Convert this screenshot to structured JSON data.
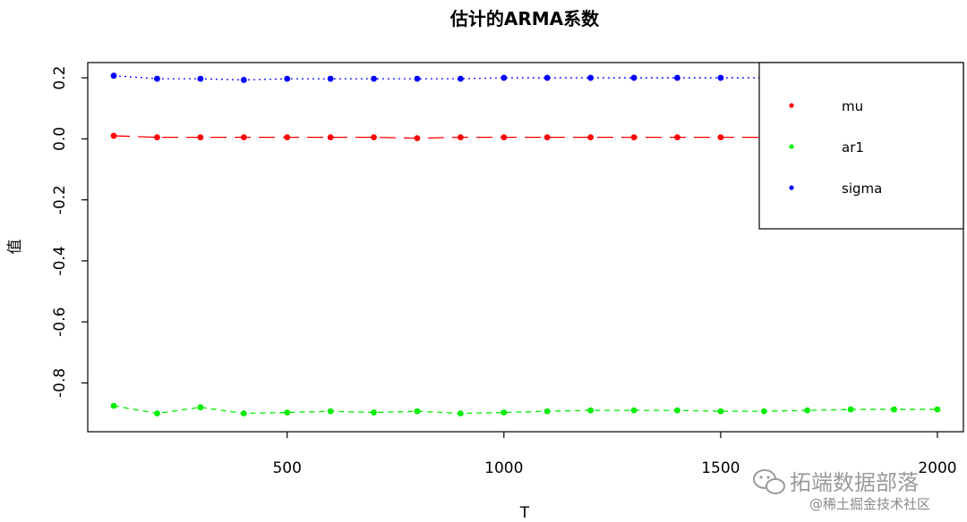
{
  "chart_data": {
    "type": "line",
    "title": "估计的ARMA系数",
    "xlabel": "T",
    "ylabel": "值",
    "xlim": [
      40,
      2060
    ],
    "ylim": [
      -0.96,
      0.25
    ],
    "xticks": [
      500,
      1000,
      1500,
      2000
    ],
    "yticks": [
      -0.8,
      -0.6,
      -0.4,
      -0.2,
      0.0,
      0.2
    ],
    "ytick_labels": [
      "-0.8",
      "-0.6",
      "-0.4",
      "-0.2",
      "0.0",
      "0.2"
    ],
    "xtick_labels": [
      "500",
      "1000",
      "1500",
      "2000"
    ],
    "grid": false,
    "legend_position": "top-right",
    "x": [
      100,
      200,
      300,
      400,
      500,
      600,
      700,
      800,
      900,
      1000,
      1100,
      1200,
      1300,
      1400,
      1500,
      1600,
      1700,
      1800,
      1900,
      2000
    ],
    "series": [
      {
        "name": "mu",
        "color": "#ff0000",
        "dash": "long-dash",
        "values": [
          0.01,
          0.005,
          0.005,
          0.005,
          0.005,
          0.005,
          0.005,
          0.002,
          0.005,
          0.005,
          0.005,
          0.005,
          0.005,
          0.005,
          0.005,
          0.005,
          0.005,
          0.005,
          0.005,
          0.005
        ]
      },
      {
        "name": "ar1",
        "color": "#00ee00",
        "dash": "dash",
        "values": [
          -0.875,
          -0.9,
          -0.88,
          -0.9,
          -0.897,
          -0.893,
          -0.897,
          -0.893,
          -0.9,
          -0.897,
          -0.893,
          -0.89,
          -0.89,
          -0.89,
          -0.893,
          -0.893,
          -0.89,
          -0.887,
          -0.887,
          -0.887
        ]
      },
      {
        "name": "sigma",
        "color": "#0000ff",
        "dash": "dotted",
        "values": [
          0.207,
          0.197,
          0.197,
          0.193,
          0.197,
          0.197,
          0.197,
          0.197,
          0.197,
          0.2,
          0.2,
          0.2,
          0.2,
          0.2,
          0.2,
          0.2,
          0.2,
          0.2,
          0.2,
          0.2
        ]
      }
    ]
  },
  "watermark": {
    "brand": "拓端数据部落",
    "sub": "@稀土掘金技术社区"
  }
}
